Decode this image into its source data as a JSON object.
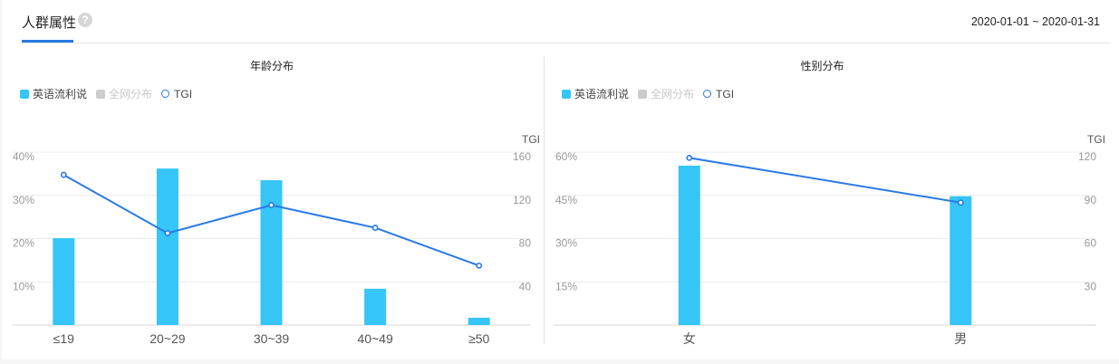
{
  "header": {
    "tab_label": "人群属性",
    "help_icon": "?",
    "date_range": "2020-01-01 ~ 2020-01-31"
  },
  "legend": {
    "series1": "英语流利说",
    "series2": "全网分布",
    "series3": "TGI"
  },
  "colors": {
    "bar": "#35c5f8",
    "line": "#2a7ae2",
    "disabled": "#cccccc",
    "grid": "#ececec"
  },
  "chart_data": [
    {
      "type": "bar",
      "title": "年龄分布",
      "categories": [
        "≤19",
        "20~29",
        "30~39",
        "40~49",
        "≥50"
      ],
      "series": [
        {
          "name": "英语流利说",
          "type": "bar",
          "axis": "left",
          "values": [
            20.1,
            36.2,
            33.5,
            8.4,
            1.7
          ]
        },
        {
          "name": "TGI",
          "type": "line",
          "axis": "right",
          "values": [
            139,
            85,
            111,
            90,
            55
          ]
        }
      ],
      "legend": [
        "英语流利说",
        "全网分布",
        "TGI"
      ],
      "y_left": {
        "ticks": [
          "10%",
          "20%",
          "30%",
          "40%"
        ],
        "range": [
          0,
          40
        ]
      },
      "y_right": {
        "label": "TGI",
        "ticks": [
          "40",
          "80",
          "120",
          "160"
        ],
        "range": [
          0,
          160
        ]
      },
      "grid": true
    },
    {
      "type": "bar",
      "title": "性别分布",
      "categories": [
        "女",
        "男"
      ],
      "series": [
        {
          "name": "英语流利说",
          "type": "bar",
          "axis": "left",
          "values": [
            55.3,
            44.7
          ]
        },
        {
          "name": "TGI",
          "type": "line",
          "axis": "right",
          "values": [
            116,
            85
          ]
        }
      ],
      "legend": [
        "英语流利说",
        "全网分布",
        "TGI"
      ],
      "y_left": {
        "ticks": [
          "15%",
          "30%",
          "45%",
          "60%"
        ],
        "range": [
          0,
          60
        ]
      },
      "y_right": {
        "label": "TGI",
        "ticks": [
          "30",
          "60",
          "90",
          "120"
        ],
        "range": [
          0,
          120
        ]
      },
      "grid": true
    }
  ]
}
